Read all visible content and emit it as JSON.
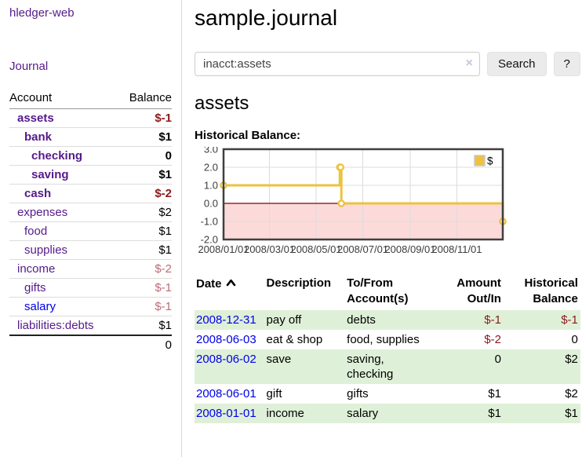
{
  "colors": {
    "accent_purple": "#551a8b",
    "link_blue": "#0000e8",
    "negative": "#8b1a1a",
    "negative_muted": "#bd6c79",
    "row_green": "#dff0d8",
    "chart_line": "#edc240",
    "chart_negative_fill": "#fcdada",
    "chart_zero_line": "#8b0000",
    "chart_border": "#3f3f3f"
  },
  "sidebar": {
    "brand": "hledger-web",
    "nav_journal": "Journal",
    "accounts_table": {
      "headers": {
        "account": "Account",
        "balance": "Balance"
      },
      "rows": [
        {
          "name": "assets",
          "balance": "$-1",
          "depth": 1,
          "bold": true,
          "balance_style": "negative"
        },
        {
          "name": "bank",
          "balance": "$1",
          "depth": 2,
          "bold": true,
          "balance_style": "normal"
        },
        {
          "name": "checking",
          "balance": "0",
          "depth": 3,
          "bold": true,
          "balance_style": "normal"
        },
        {
          "name": "saving",
          "balance": "$1",
          "depth": 3,
          "bold": true,
          "balance_style": "normal"
        },
        {
          "name": "cash",
          "balance": "$-2",
          "depth": 2,
          "bold": true,
          "balance_style": "negative"
        },
        {
          "name": "expenses",
          "balance": "$2",
          "depth": 1,
          "bold": false,
          "balance_style": "normal"
        },
        {
          "name": "food",
          "balance": "$1",
          "depth": 2,
          "bold": false,
          "balance_style": "normal"
        },
        {
          "name": "supplies",
          "balance": "$1",
          "depth": 2,
          "bold": false,
          "balance_style": "normal"
        },
        {
          "name": "income",
          "balance": "$-2",
          "depth": 1,
          "bold": false,
          "balance_style": "negative-muted"
        },
        {
          "name": "gifts",
          "balance": "$-1",
          "depth": 2,
          "bold": false,
          "balance_style": "negative-muted"
        },
        {
          "name": "salary",
          "balance": "$-1",
          "depth": 2,
          "bold": false,
          "balance_style": "negative-muted",
          "link_style": "blue"
        },
        {
          "name": "liabilities:debts",
          "balance": "$1",
          "depth": 1,
          "bold": false,
          "balance_style": "normal"
        }
      ],
      "total": "0"
    }
  },
  "main": {
    "title": "sample.journal",
    "search": {
      "value": "inacct:assets",
      "clear_icon": "×",
      "search_button": "Search",
      "help_button": "?"
    },
    "account_heading": "assets",
    "section_label": "Historical Balance:"
  },
  "chart_data": {
    "type": "line",
    "title": "Historical Balance",
    "step": true,
    "ylim": [
      -2,
      3
    ],
    "x_range": [
      "2008/01/01",
      "2008/12/31"
    ],
    "yticks": [
      "3.0",
      "2.0",
      "1.0",
      "0.0",
      "-1.0",
      "-2.0"
    ],
    "xticks": [
      "2008/01/01",
      "2008/03/01",
      "2008/05/01",
      "2008/07/01",
      "2008/09/01",
      "2008/11/01"
    ],
    "grid": true,
    "legend_position": "top-right",
    "legend": [
      {
        "label": "$",
        "color": "#edc240"
      }
    ],
    "series": [
      {
        "name": "$",
        "color": "#edc240",
        "points": [
          {
            "x": "2008/01/01",
            "y": 1
          },
          {
            "x": "2008/06/01",
            "y": 2
          },
          {
            "x": "2008/06/02",
            "y": 2
          },
          {
            "x": "2008/06/03",
            "y": 0
          },
          {
            "x": "2008/12/31",
            "y": -1
          }
        ]
      }
    ],
    "negative_region": {
      "from": 0,
      "to": -2
    }
  },
  "register": {
    "headers": {
      "date": "Date",
      "description": "Description",
      "accounts": "To/From Account(s)",
      "amount": "Amount Out/In",
      "balance": "Historical Balance"
    },
    "sort_column": "date",
    "sort_direction": "asc",
    "rows": [
      {
        "date": "2008-12-31",
        "description": "pay off",
        "accounts": "debts",
        "amount": "$-1",
        "amount_negative": true,
        "balance": "$-1",
        "balance_negative": true
      },
      {
        "date": "2008-06-03",
        "description": "eat & shop",
        "accounts": "food, supplies",
        "amount": "$-2",
        "amount_negative": true,
        "balance": "0",
        "balance_negative": false
      },
      {
        "date": "2008-06-02",
        "description": "save",
        "accounts": "saving, checking",
        "amount": "0",
        "amount_negative": false,
        "balance": "$2",
        "balance_negative": false
      },
      {
        "date": "2008-06-01",
        "description": "gift",
        "accounts": "gifts",
        "amount": "$1",
        "amount_negative": false,
        "balance": "$2",
        "balance_negative": false
      },
      {
        "date": "2008-01-01",
        "description": "income",
        "accounts": "salary",
        "amount": "$1",
        "amount_negative": false,
        "balance": "$1",
        "balance_negative": false
      }
    ]
  }
}
